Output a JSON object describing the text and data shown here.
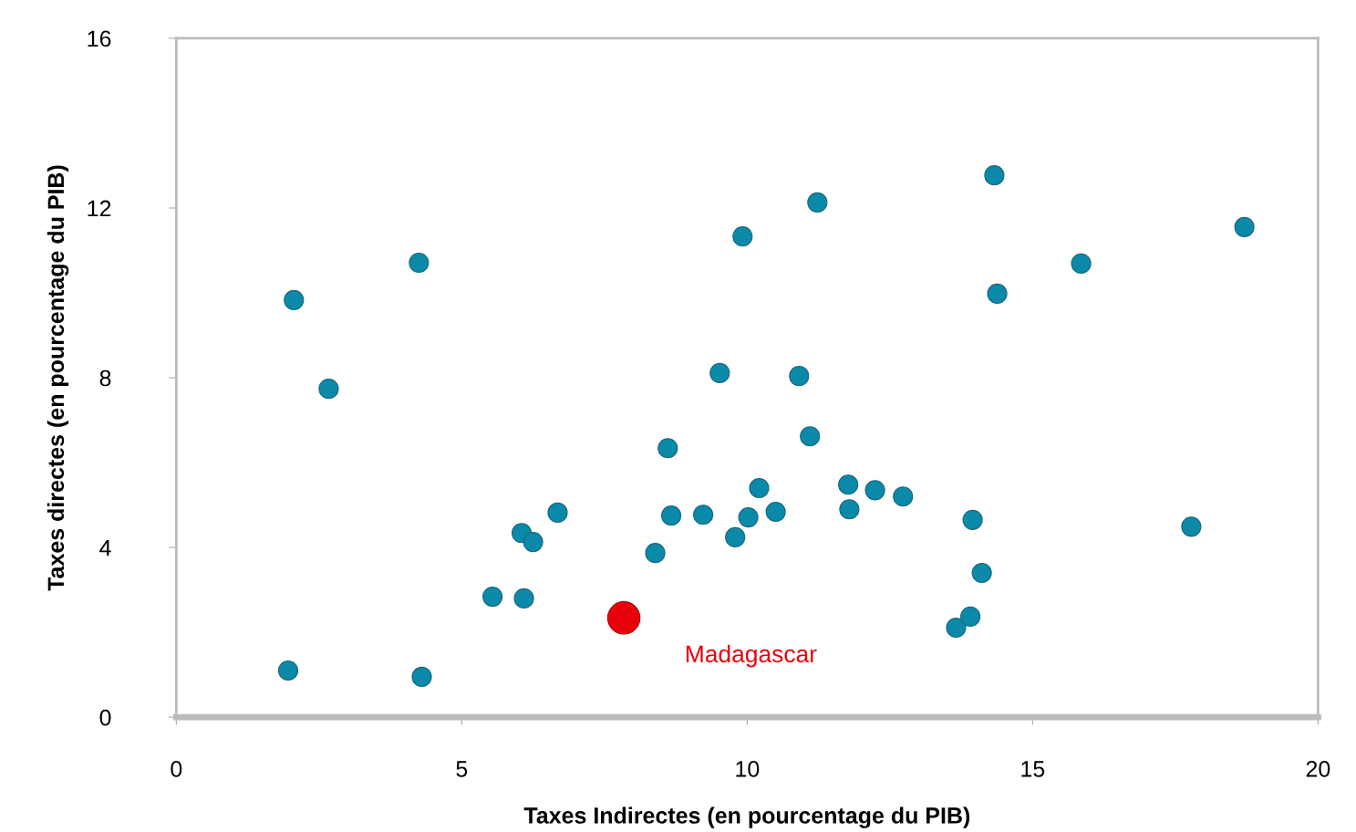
{
  "chart_data": {
    "type": "scatter",
    "xlabel": "Taxes Indirectes (en pourcentage du PIB)",
    "ylabel": "Taxes directes (en pourcentage du PIB)",
    "xlim": [
      0,
      20
    ],
    "xticks": [
      0,
      5,
      10,
      15,
      20
    ],
    "ylim": [
      0,
      16
    ],
    "yticks": [
      0,
      4,
      8,
      12,
      16
    ],
    "grid": false,
    "marker": "circle",
    "series": [
      {
        "color": "#0a8aa8",
        "x": [
          1.96,
          2.06,
          2.67,
          4.25,
          4.3,
          5.54,
          6.05,
          6.25,
          6.09,
          6.68,
          8.39,
          8.61,
          8.67,
          9.23,
          9.52,
          9.79,
          9.92,
          10.02,
          10.21,
          10.5,
          10.91,
          11.1,
          11.23,
          11.77,
          11.79,
          12.24,
          12.73,
          13.66,
          13.91,
          13.95,
          14.11,
          14.33,
          14.38,
          15.85,
          17.78,
          18.71
        ],
        "values": [
          1.1,
          9.83,
          7.74,
          10.71,
          0.95,
          2.84,
          4.34,
          4.13,
          2.8,
          4.82,
          3.87,
          6.34,
          4.75,
          4.77,
          8.11,
          4.24,
          11.33,
          4.71,
          5.4,
          4.84,
          8.04,
          6.62,
          12.13,
          5.48,
          4.9,
          5.35,
          5.2,
          2.11,
          2.37,
          4.65,
          3.4,
          12.77,
          9.98,
          10.69,
          4.49,
          11.55
        ]
      },
      {
        "color": "#e8000b",
        "x": [
          7.84
        ],
        "values": [
          2.34
        ]
      }
    ],
    "annotations": [
      {
        "text": "Madagascar",
        "x": 7.84,
        "y": 2.34
      }
    ]
  }
}
